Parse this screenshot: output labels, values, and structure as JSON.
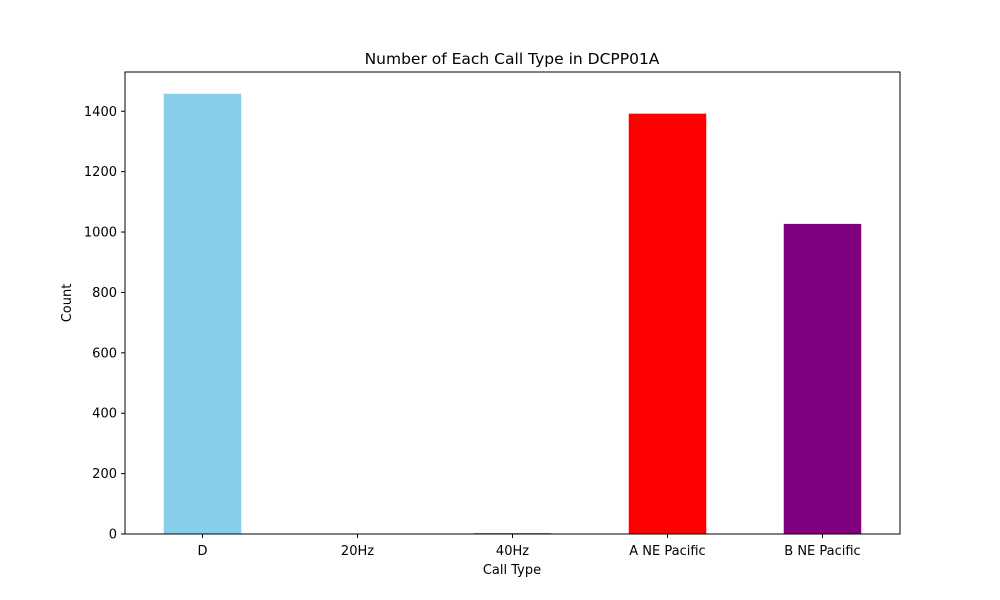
{
  "chart_data": {
    "type": "bar",
    "title": "Number of Each Call Type in DCPP01A",
    "xlabel": "Call Type",
    "ylabel": "Count",
    "categories": [
      "D",
      "20Hz",
      "40Hz",
      "A NE Pacific",
      "B NE Pacific"
    ],
    "values": [
      1458,
      0,
      3,
      1392,
      1027
    ],
    "colors": [
      "#87ceeb",
      "#000000",
      "#d2691e",
      "#ff0000",
      "#800080"
    ],
    "ylim": [
      0,
      1530
    ],
    "yticks": [
      0,
      200,
      400,
      600,
      800,
      1000,
      1200,
      1400
    ],
    "grid": false,
    "legend": "none"
  }
}
